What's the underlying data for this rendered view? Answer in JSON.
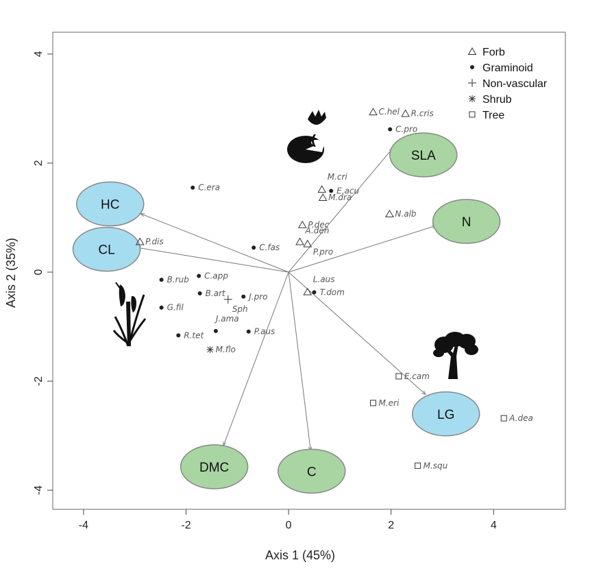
{
  "chart_data": {
    "type": "scatter",
    "title": "",
    "xlabel": "Axis 1 (45%)",
    "ylabel": "Axis 2 (35%)",
    "xlim": [
      -4.6,
      5.4
    ],
    "ylim": [
      -4.35,
      4.4
    ],
    "xticks": [
      -4,
      -2,
      0,
      2,
      4
    ],
    "yticks": [
      -4,
      -2,
      0,
      2,
      4
    ],
    "grid": false,
    "legend_position": "top-right",
    "legend": [
      {
        "label": "Forb",
        "marker": "triangle"
      },
      {
        "label": "Graminoid",
        "marker": "dot"
      },
      {
        "label": "Non-vascular",
        "marker": "plus"
      },
      {
        "label": "Shrub",
        "marker": "asterisk"
      },
      {
        "label": "Tree",
        "marker": "square"
      }
    ],
    "species": [
      {
        "label": "C.hel",
        "x": 1.65,
        "y": 2.94,
        "group": "Forb"
      },
      {
        "label": "R.cris",
        "x": 2.28,
        "y": 2.91,
        "group": "Forb"
      },
      {
        "label": "C.pro",
        "x": 1.98,
        "y": 2.62,
        "group": "Graminoid"
      },
      {
        "label": "M.cri",
        "x": 0.65,
        "y": 1.52,
        "group": "Forb"
      },
      {
        "label": "E.acu",
        "x": 0.83,
        "y": 1.49,
        "group": "Graminoid"
      },
      {
        "label": "M.dra",
        "x": 0.67,
        "y": 1.37,
        "group": "Forb"
      },
      {
        "label": "C.era",
        "x": -1.87,
        "y": 1.55,
        "group": "Graminoid"
      },
      {
        "label": "N.alb",
        "x": 1.97,
        "y": 1.07,
        "group": "Forb"
      },
      {
        "label": "P.dec",
        "x": 0.27,
        "y": 0.87,
        "group": "Forb"
      },
      {
        "label": "A.den",
        "x": 0.22,
        "y": 0.56,
        "group": "Forb"
      },
      {
        "label": "P.pro",
        "x": 0.37,
        "y": 0.52,
        "group": "Forb"
      },
      {
        "label": "C.fas",
        "x": -0.68,
        "y": 0.45,
        "group": "Graminoid"
      },
      {
        "label": "P.dis",
        "x": -2.9,
        "y": 0.56,
        "group": "Forb"
      },
      {
        "label": "B.rub",
        "x": -2.48,
        "y": -0.14,
        "group": "Graminoid"
      },
      {
        "label": "C.app",
        "x": -1.75,
        "y": -0.07,
        "group": "Graminoid"
      },
      {
        "label": "B.art",
        "x": -1.73,
        "y": -0.39,
        "group": "Graminoid"
      },
      {
        "label": "J.pro",
        "x": -0.88,
        "y": -0.45,
        "group": "Graminoid"
      },
      {
        "label": "Sph",
        "x": -1.18,
        "y": -0.5,
        "group": "Non-vascular"
      },
      {
        "label": "L.aus",
        "x": 0.37,
        "y": -0.36,
        "group": "Forb"
      },
      {
        "label": "T.dom",
        "x": 0.5,
        "y": -0.37,
        "group": "Graminoid"
      },
      {
        "label": "G.fil",
        "x": -2.48,
        "y": -0.65,
        "group": "Graminoid"
      },
      {
        "label": "J.ama",
        "x": -1.42,
        "y": -1.08,
        "group": "Graminoid"
      },
      {
        "label": "P.aus",
        "x": -0.78,
        "y": -1.09,
        "group": "Graminoid"
      },
      {
        "label": "R.tet",
        "x": -2.15,
        "y": -1.16,
        "group": "Graminoid"
      },
      {
        "label": "M.flo",
        "x": -1.53,
        "y": -1.42,
        "group": "Shrub"
      },
      {
        "label": "E.cam",
        "x": 2.15,
        "y": -1.91,
        "group": "Tree"
      },
      {
        "label": "M.eri",
        "x": 1.65,
        "y": -2.4,
        "group": "Tree"
      },
      {
        "label": "A.dea",
        "x": 4.2,
        "y": -2.68,
        "group": "Tree"
      },
      {
        "label": "M.squ",
        "x": 2.52,
        "y": -3.55,
        "group": "Tree"
      }
    ],
    "traits": [
      {
        "label": "SLA",
        "x": 2.63,
        "y": 2.15,
        "arrow_x": 2.03,
        "arrow_y": 2.27,
        "fill": "#a8d5a2"
      },
      {
        "label": "N",
        "x": 3.47,
        "y": 0.93,
        "arrow_x": 2.87,
        "arrow_y": 0.85,
        "fill": "#a8d5a2"
      },
      {
        "label": "HC",
        "x": -3.48,
        "y": 1.25,
        "arrow_x": -2.88,
        "arrow_y": 1.07,
        "fill": "#a6dcef"
      },
      {
        "label": "CL",
        "x": -3.55,
        "y": 0.42,
        "arrow_x": -2.95,
        "arrow_y": 0.45,
        "fill": "#a6dcef"
      },
      {
        "label": "LG",
        "x": 3.07,
        "y": -2.6,
        "arrow_x": 2.67,
        "arrow_y": -2.24,
        "fill": "#a6dcef"
      },
      {
        "label": "DMC",
        "x": -1.45,
        "y": -3.57,
        "arrow_x": -1.27,
        "arrow_y": -3.18,
        "fill": "#a8d5a2"
      },
      {
        "label": "C",
        "x": 0.45,
        "y": -3.65,
        "arrow_x": 0.43,
        "arrow_y": -3.27,
        "fill": "#a8d5a2"
      }
    ],
    "colors": {
      "frame": "#666666",
      "arrow": "#777777",
      "marker": "#222222",
      "green_ellipse": "#a8d5a2",
      "blue_ellipse": "#a6dcef",
      "ellipse_stroke": "#888888",
      "silhouette": "#111111"
    },
    "icons": [
      "water-lily-icon",
      "cattail-icon",
      "tree-icon"
    ]
  }
}
